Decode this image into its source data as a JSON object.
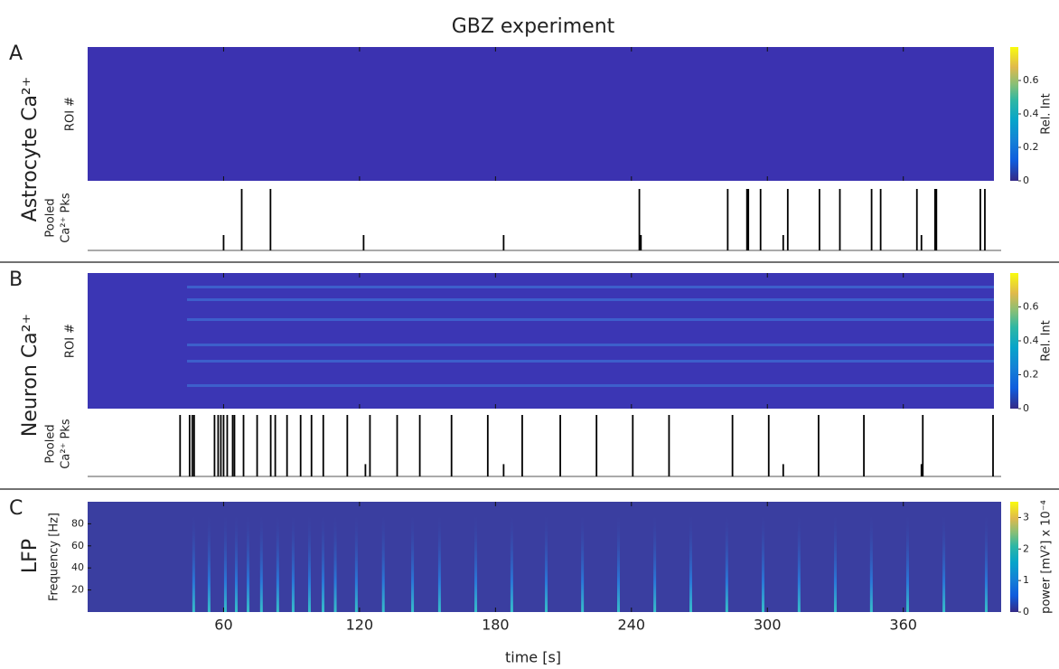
{
  "title": "GBZ experiment",
  "chart_data": [
    {
      "type": "heatmap",
      "panel": "A",
      "row_label": "Astrocyte Ca²⁺",
      "ylabel": "ROI #",
      "color": "#3b32b0",
      "xlim": [
        0,
        400
      ],
      "xticks": [
        60,
        120,
        180,
        240,
        300,
        360
      ],
      "colorbar": {
        "label": "Rel. Int",
        "lim": [
          0,
          0.8
        ],
        "ticks": [
          0,
          0.2,
          0.4,
          0.6
        ]
      }
    },
    {
      "type": "events",
      "ylabel": [
        "Pooled",
        "Ca²⁺ Pks"
      ],
      "xlim": [
        0,
        400
      ],
      "ylim": [
        0,
        1
      ],
      "color": "#000000",
      "times": [
        60,
        68,
        80.7,
        121.8,
        183.6,
        243.5,
        244.2,
        282.5,
        291,
        291.6,
        297,
        307,
        309,
        323,
        332,
        346,
        350,
        366,
        368,
        374,
        374.6,
        394,
        396
      ],
      "heights": [
        0.25,
        1,
        1,
        0.25,
        0.25,
        1,
        0.25,
        1,
        1,
        1,
        1,
        0.25,
        1,
        1,
        1,
        1,
        1,
        1,
        0.25,
        1,
        1,
        1,
        1
      ]
    },
    {
      "type": "heatmap",
      "panel": "B",
      "row_label": "Neuron Ca²⁺",
      "ylabel": "ROI #",
      "color": "#3b36b4",
      "xlim": [
        0,
        400
      ],
      "xticks": [
        60,
        120,
        180,
        240,
        300,
        360
      ],
      "colorbar": {
        "label": "Rel. Int",
        "lim": [
          0,
          0.8
        ],
        "ticks": [
          0,
          0.2,
          0.4,
          0.6
        ]
      }
    },
    {
      "type": "events",
      "ylabel": [
        "Pooled",
        "Ca²⁺ Pks"
      ],
      "xlim": [
        0,
        400
      ],
      "ylim": [
        0,
        1
      ],
      "color": "#000000",
      "times": [
        40.8,
        45,
        46.2,
        47,
        56,
        57.6,
        58.8,
        60,
        61.6,
        64,
        64.8,
        68.8,
        74.8,
        80.8,
        82.8,
        88,
        94,
        98.8,
        104,
        114.6,
        122.6,
        124.6,
        136.6,
        146.6,
        160.6,
        176.6,
        183.6,
        191.8,
        208.6,
        224.6,
        240.6,
        256.6,
        284.6,
        300.6,
        307,
        322.6,
        342.6,
        368,
        368.6,
        399.6
      ],
      "heights": [
        1,
        1,
        1,
        1,
        1,
        1,
        1,
        1,
        1,
        1,
        1,
        1,
        1,
        1,
        1,
        1,
        1,
        1,
        1,
        1,
        0.2,
        1,
        1,
        1,
        1,
        1,
        0.2,
        1,
        1,
        1,
        1,
        1,
        1,
        1,
        0.2,
        1,
        1,
        0.2,
        1,
        1
      ]
    },
    {
      "type": "spectrogram",
      "panel": "C",
      "row_label": "LFP",
      "ylabel": "Frequency [Hz]",
      "xlabel": "time [s]",
      "color": "#3a3ea0",
      "xlim": [
        0,
        400
      ],
      "xticks": [
        60,
        120,
        180,
        240,
        300,
        360
      ],
      "ylim": [
        0,
        100
      ],
      "yticks": [
        20,
        40,
        60,
        80
      ],
      "event_times": [
        46.8,
        53.6,
        60.8,
        65.6,
        70.8,
        76.7,
        83.9,
        90.7,
        97.9,
        103.9,
        109.3,
        118.6,
        130.5,
        143.4,
        155.3,
        171.3,
        187.2,
        202.4,
        218.4,
        234.3,
        250.3,
        266.2,
        282.1,
        298.1,
        314,
        330,
        345.9,
        361.9,
        377.9,
        396.6
      ],
      "colorbar": {
        "label": "power [mV²] x 10⁻⁴",
        "lim": [
          0,
          3.5
        ],
        "ticks": [
          0,
          1,
          2,
          3
        ]
      }
    }
  ]
}
